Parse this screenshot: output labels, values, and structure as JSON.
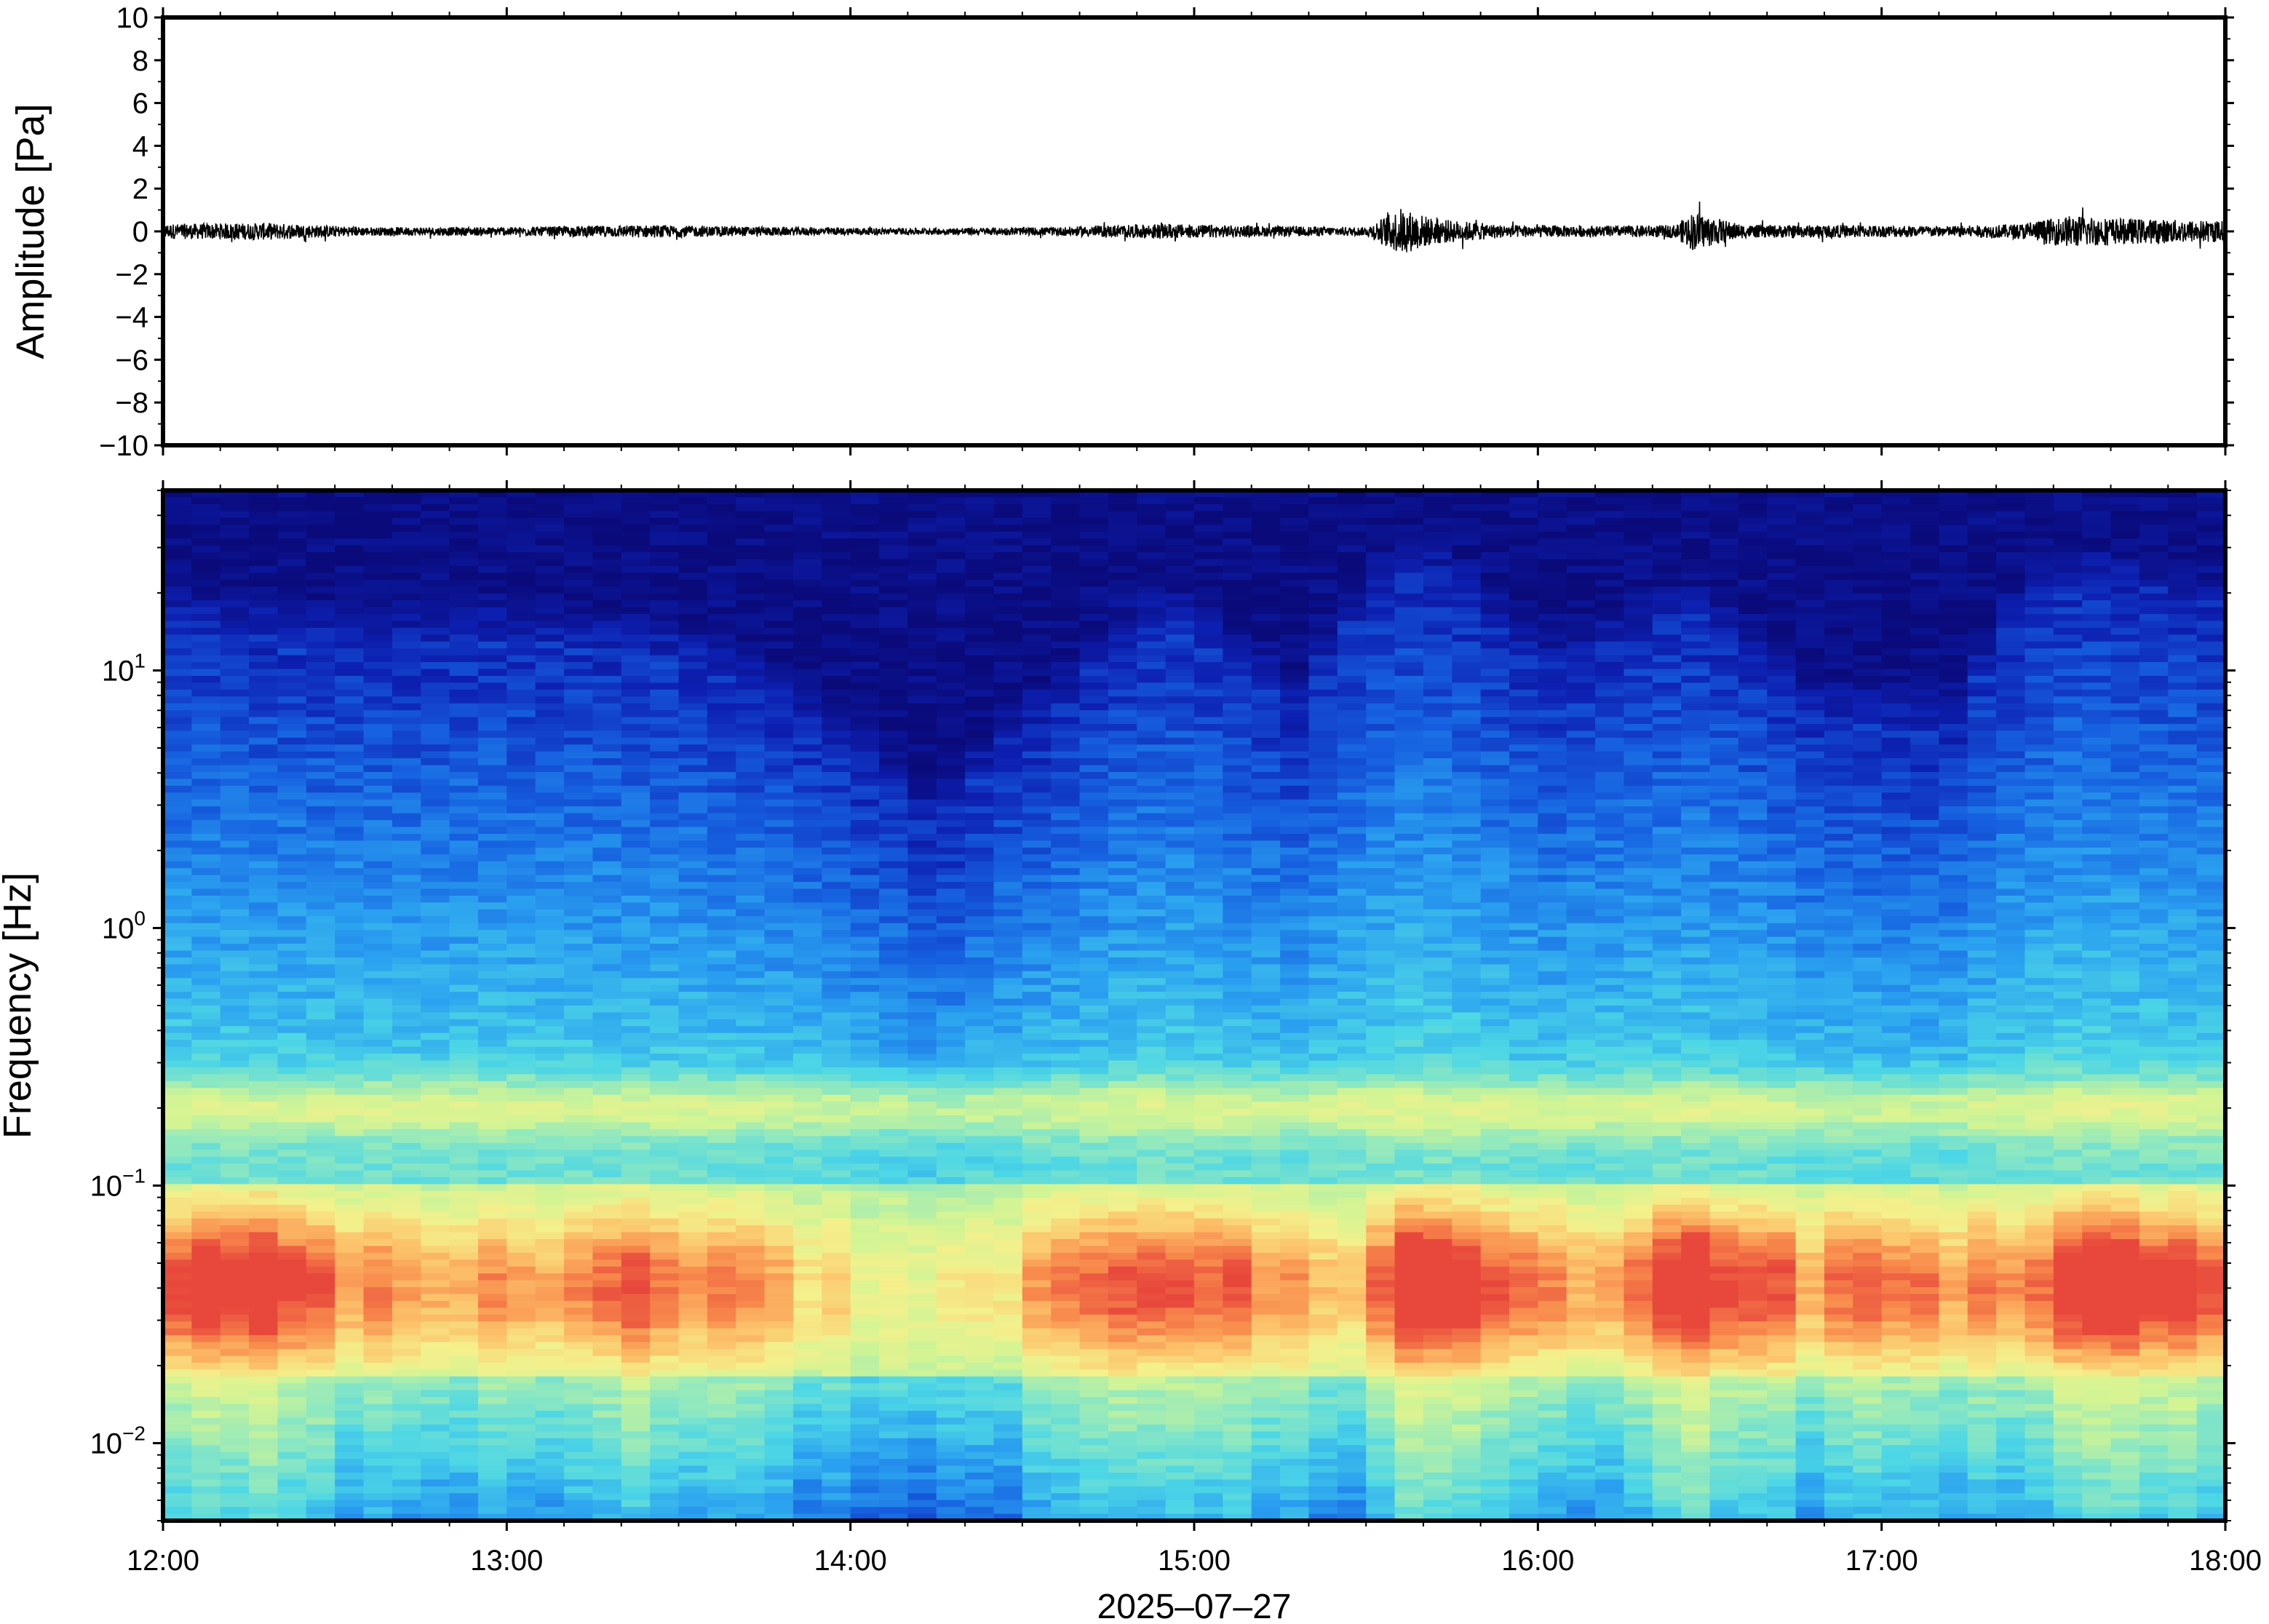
{
  "chart_data": [
    {
      "type": "line",
      "panel": "waveform",
      "ylabel": "Amplitude [Pa]",
      "ylim": [
        -10,
        10
      ],
      "yticks": [
        10,
        8,
        6,
        4,
        2,
        0,
        -2,
        -4,
        -6,
        -8,
        -10
      ],
      "ytick_labels": [
        "10",
        "8",
        "6",
        "4",
        "2",
        "0",
        "−2",
        "−4",
        "−6",
        "−8",
        "−10"
      ],
      "xlim": [
        "12:00",
        "18:00"
      ],
      "grid": false,
      "series_color": "#000000",
      "envelope_hours": [
        12.0,
        12.3,
        12.6,
        13.0,
        13.4,
        13.8,
        14.2,
        14.6,
        14.9,
        15.2,
        15.5,
        15.6,
        15.7,
        15.9,
        16.2,
        16.4,
        16.45,
        16.6,
        16.9,
        17.2,
        17.4,
        17.55,
        17.7,
        18.0
      ],
      "envelope_amplitude": [
        0.35,
        0.4,
        0.2,
        0.2,
        0.3,
        0.2,
        0.15,
        0.2,
        0.35,
        0.25,
        0.2,
        1.1,
        0.6,
        0.3,
        0.25,
        0.3,
        0.9,
        0.3,
        0.3,
        0.25,
        0.35,
        0.75,
        0.6,
        0.5
      ]
    },
    {
      "type": "heatmap",
      "panel": "spectrogram",
      "ylabel": "Frequency [Hz]",
      "xlabel": "2025–07–27",
      "yscale": "log",
      "ylim": [
        0.005,
        50
      ],
      "yticks": [
        0.01,
        0.1,
        1,
        10
      ],
      "ytick_labels": [
        {
          "base": "10",
          "exp": "−2"
        },
        {
          "base": "10",
          "exp": "−1"
        },
        {
          "base": "10",
          "exp": "0"
        },
        {
          "base": "10",
          "exp": "1"
        }
      ],
      "xlim": [
        "12:00",
        "18:00"
      ],
      "xticks": [
        "12:00",
        "13:00",
        "14:00",
        "15:00",
        "16:00",
        "17:00",
        "18:00"
      ],
      "colormap": [
        "#0a0a7a",
        "#0d1fb0",
        "#1660e0",
        "#2aa0f0",
        "#4cd6e6",
        "#8ee8c0",
        "#d2f494",
        "#f4f08c",
        "#fcc46c",
        "#f88a4c",
        "#e8483c"
      ],
      "intensity_profile": {
        "band_top_hz_hours": [
          12.0,
          12.5,
          13.0,
          13.5,
          14.0,
          14.25,
          14.6,
          14.9,
          15.3,
          15.65,
          16.0,
          16.45,
          16.8,
          17.2,
          17.55,
          18.0
        ],
        "band_top_hz": [
          14,
          11,
          12,
          10,
          4,
          2,
          6,
          14,
          6,
          22,
          8,
          14,
          6,
          5,
          20,
          15
        ],
        "low_freq_energy_hours": [
          12.0,
          12.2,
          12.6,
          13.0,
          13.4,
          13.8,
          14.2,
          14.6,
          14.85,
          15.1,
          15.4,
          15.65,
          15.9,
          16.2,
          16.5,
          16.8,
          16.95,
          17.2,
          17.5,
          17.6,
          18.0
        ],
        "low_freq_energy": [
          0.78,
          0.9,
          0.72,
          0.7,
          0.82,
          0.66,
          0.55,
          0.68,
          0.85,
          0.8,
          0.6,
          0.98,
          0.75,
          0.7,
          0.92,
          0.72,
          0.86,
          0.7,
          0.82,
          0.9,
          0.8
        ]
      }
    }
  ]
}
